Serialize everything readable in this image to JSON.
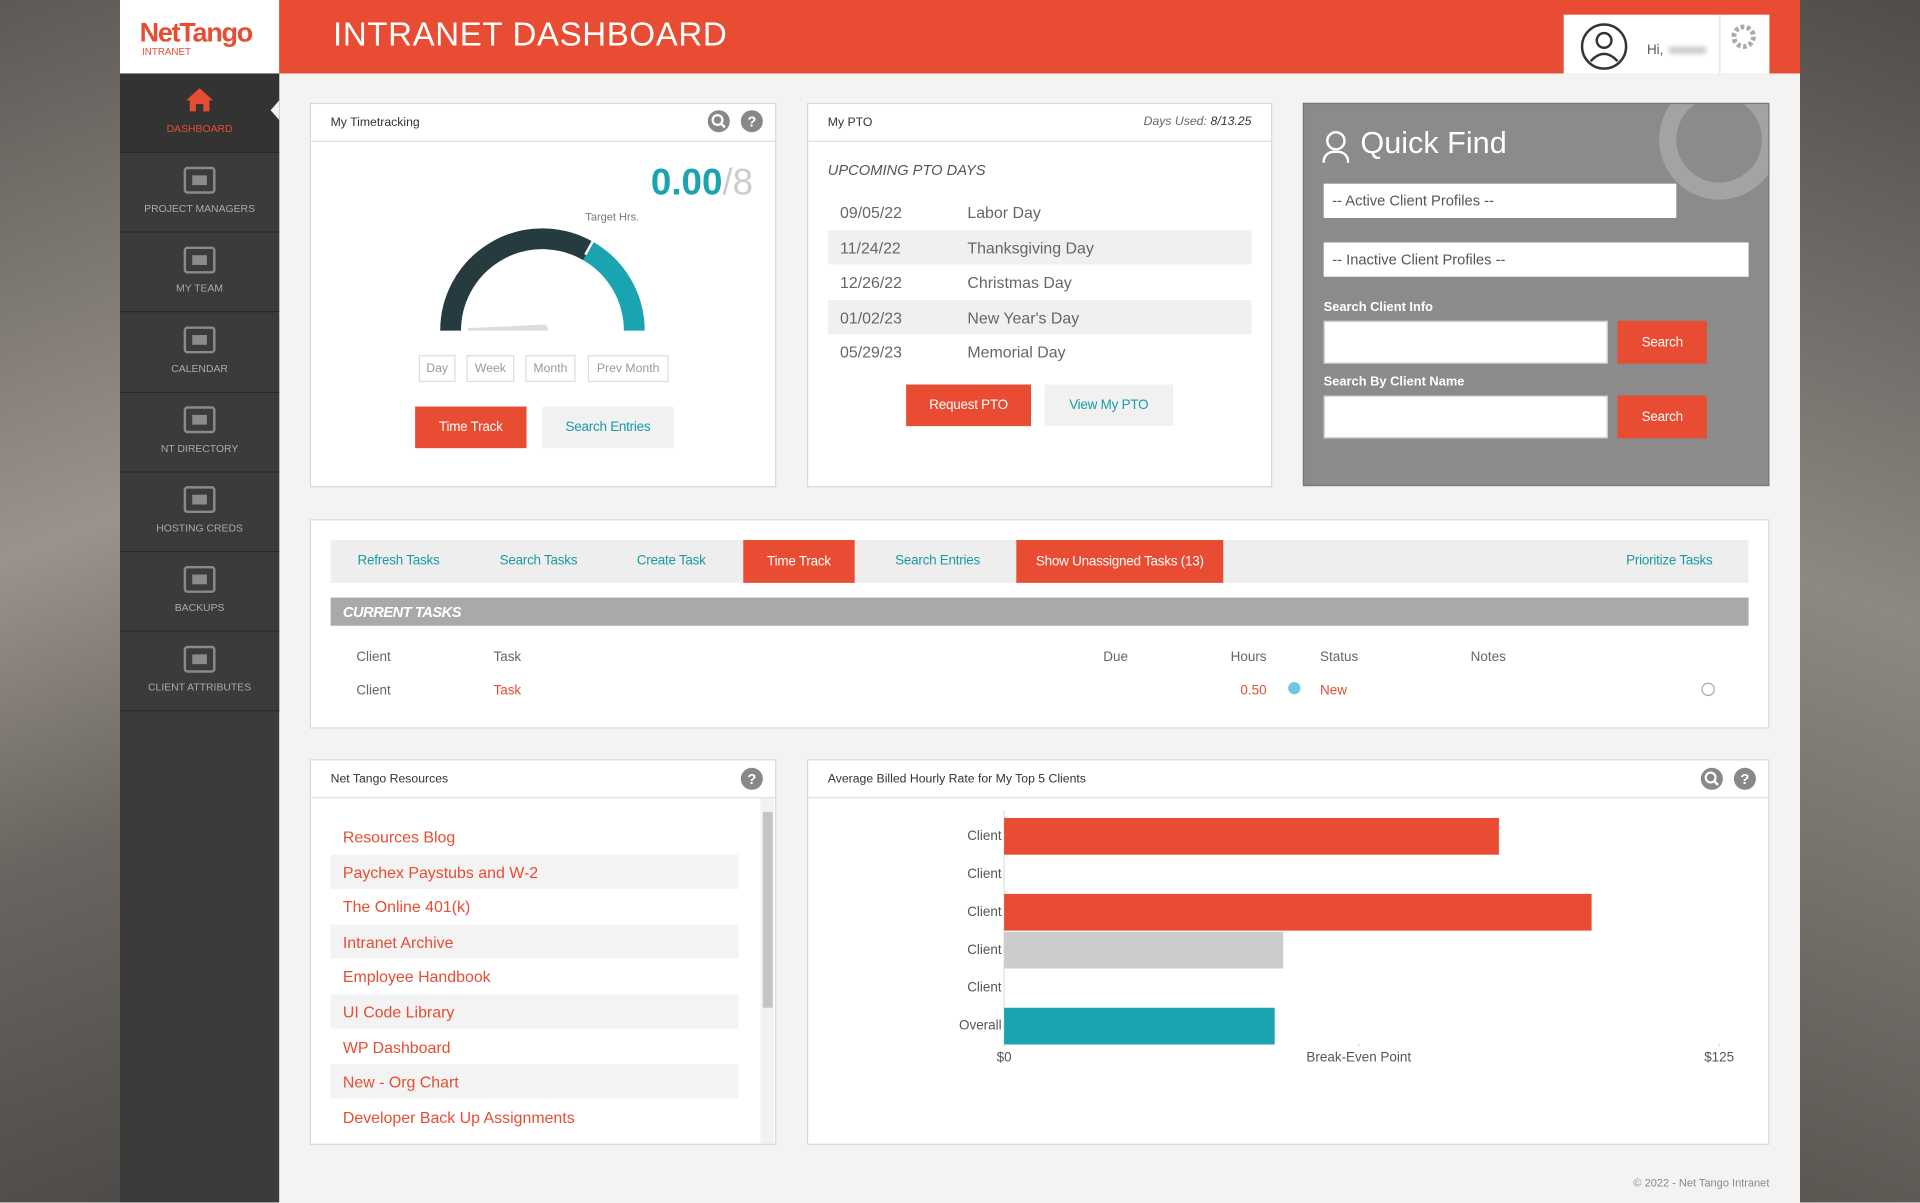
{
  "logo": {
    "name": "NetTango",
    "sub": "INTRANET"
  },
  "header": {
    "title": "INTRANET DASHBOARD",
    "greeting": "Hi,"
  },
  "nav": [
    "DASHBOARD",
    "PROJECT MANAGERS",
    "MY TEAM",
    "CALENDAR",
    "NT DIRECTORY",
    "HOSTING CREDS",
    "BACKUPS",
    "CLIENT ATTRIBUTES"
  ],
  "timetracking": {
    "title": "My Timetracking",
    "hours": "0.00",
    "target": "/8",
    "target_label": "Target Hrs.",
    "ranges": [
      "Day",
      "Week",
      "Month",
      "Prev Month"
    ],
    "buttons": [
      "Time Track",
      "Search Entries"
    ]
  },
  "pto": {
    "title": "My PTO",
    "days_used_label": "Days Used:",
    "days_used": "8/13.25",
    "heading": "UPCOMING PTO DAYS",
    "days": [
      [
        "09/05/22",
        "Labor Day"
      ],
      [
        "11/24/22",
        "Thanksgiving Day"
      ],
      [
        "12/26/22",
        "Christmas Day"
      ],
      [
        "01/02/23",
        "New Year's Day"
      ],
      [
        "05/29/23",
        "Memorial Day"
      ]
    ],
    "buttons": [
      "Request PTO",
      "View My PTO"
    ]
  },
  "quick_find": {
    "title": "Quick Find",
    "selects": [
      "-- Active Client Profiles --",
      "-- Inactive Client Profiles --"
    ],
    "labels": [
      "Search Client Info",
      "Search By Client Name"
    ],
    "buttons": [
      "Search",
      "Search"
    ]
  },
  "tasks": {
    "toolbar": [
      "Refresh Tasks",
      "Search Tasks",
      "Create Task",
      "Time Track",
      "Search Entries",
      "Show Unassigned Tasks (13)",
      "Prioritize Tasks"
    ],
    "heading": "CURRENT TASKS",
    "columns": [
      "Client",
      "Task",
      "Due",
      "Hours",
      "Status",
      "Notes"
    ],
    "rows": [
      {
        "client": "Client",
        "task": "Task",
        "hours": "0.50",
        "status": "New"
      }
    ]
  },
  "resources": {
    "title": "Net Tango Resources",
    "links": [
      "Resources Blog",
      "Paychex Paystubs and W-2",
      "The Online 401(k)",
      "Intranet Archive",
      "Employee Handbook",
      "UI Code Library",
      "WP Dashboard",
      "New - Org Chart",
      "Developer Back Up Assignments"
    ]
  },
  "chart_data": {
    "type": "bar",
    "orientation": "horizontal",
    "title": "Average Billed Hourly Rate for My Top 5 Clients",
    "categories": [
      "Client",
      "Client",
      "Client",
      "Client",
      "Client",
      "Overall"
    ],
    "values": [
      86.5,
      0,
      102.7,
      48.8,
      0,
      47.3
    ],
    "colors": [
      "#e84c32",
      null,
      "#e84c32",
      "#cccccc",
      null,
      "#1aa3b0"
    ],
    "xlim": [
      0,
      125
    ],
    "xticks": [
      {
        "value": 0,
        "label": "$0"
      },
      {
        "value": 62,
        "label": "Break-Even Point"
      },
      {
        "value": 125,
        "label": "$125"
      }
    ]
  },
  "footer": "© 2022 - Net Tango Intranet"
}
